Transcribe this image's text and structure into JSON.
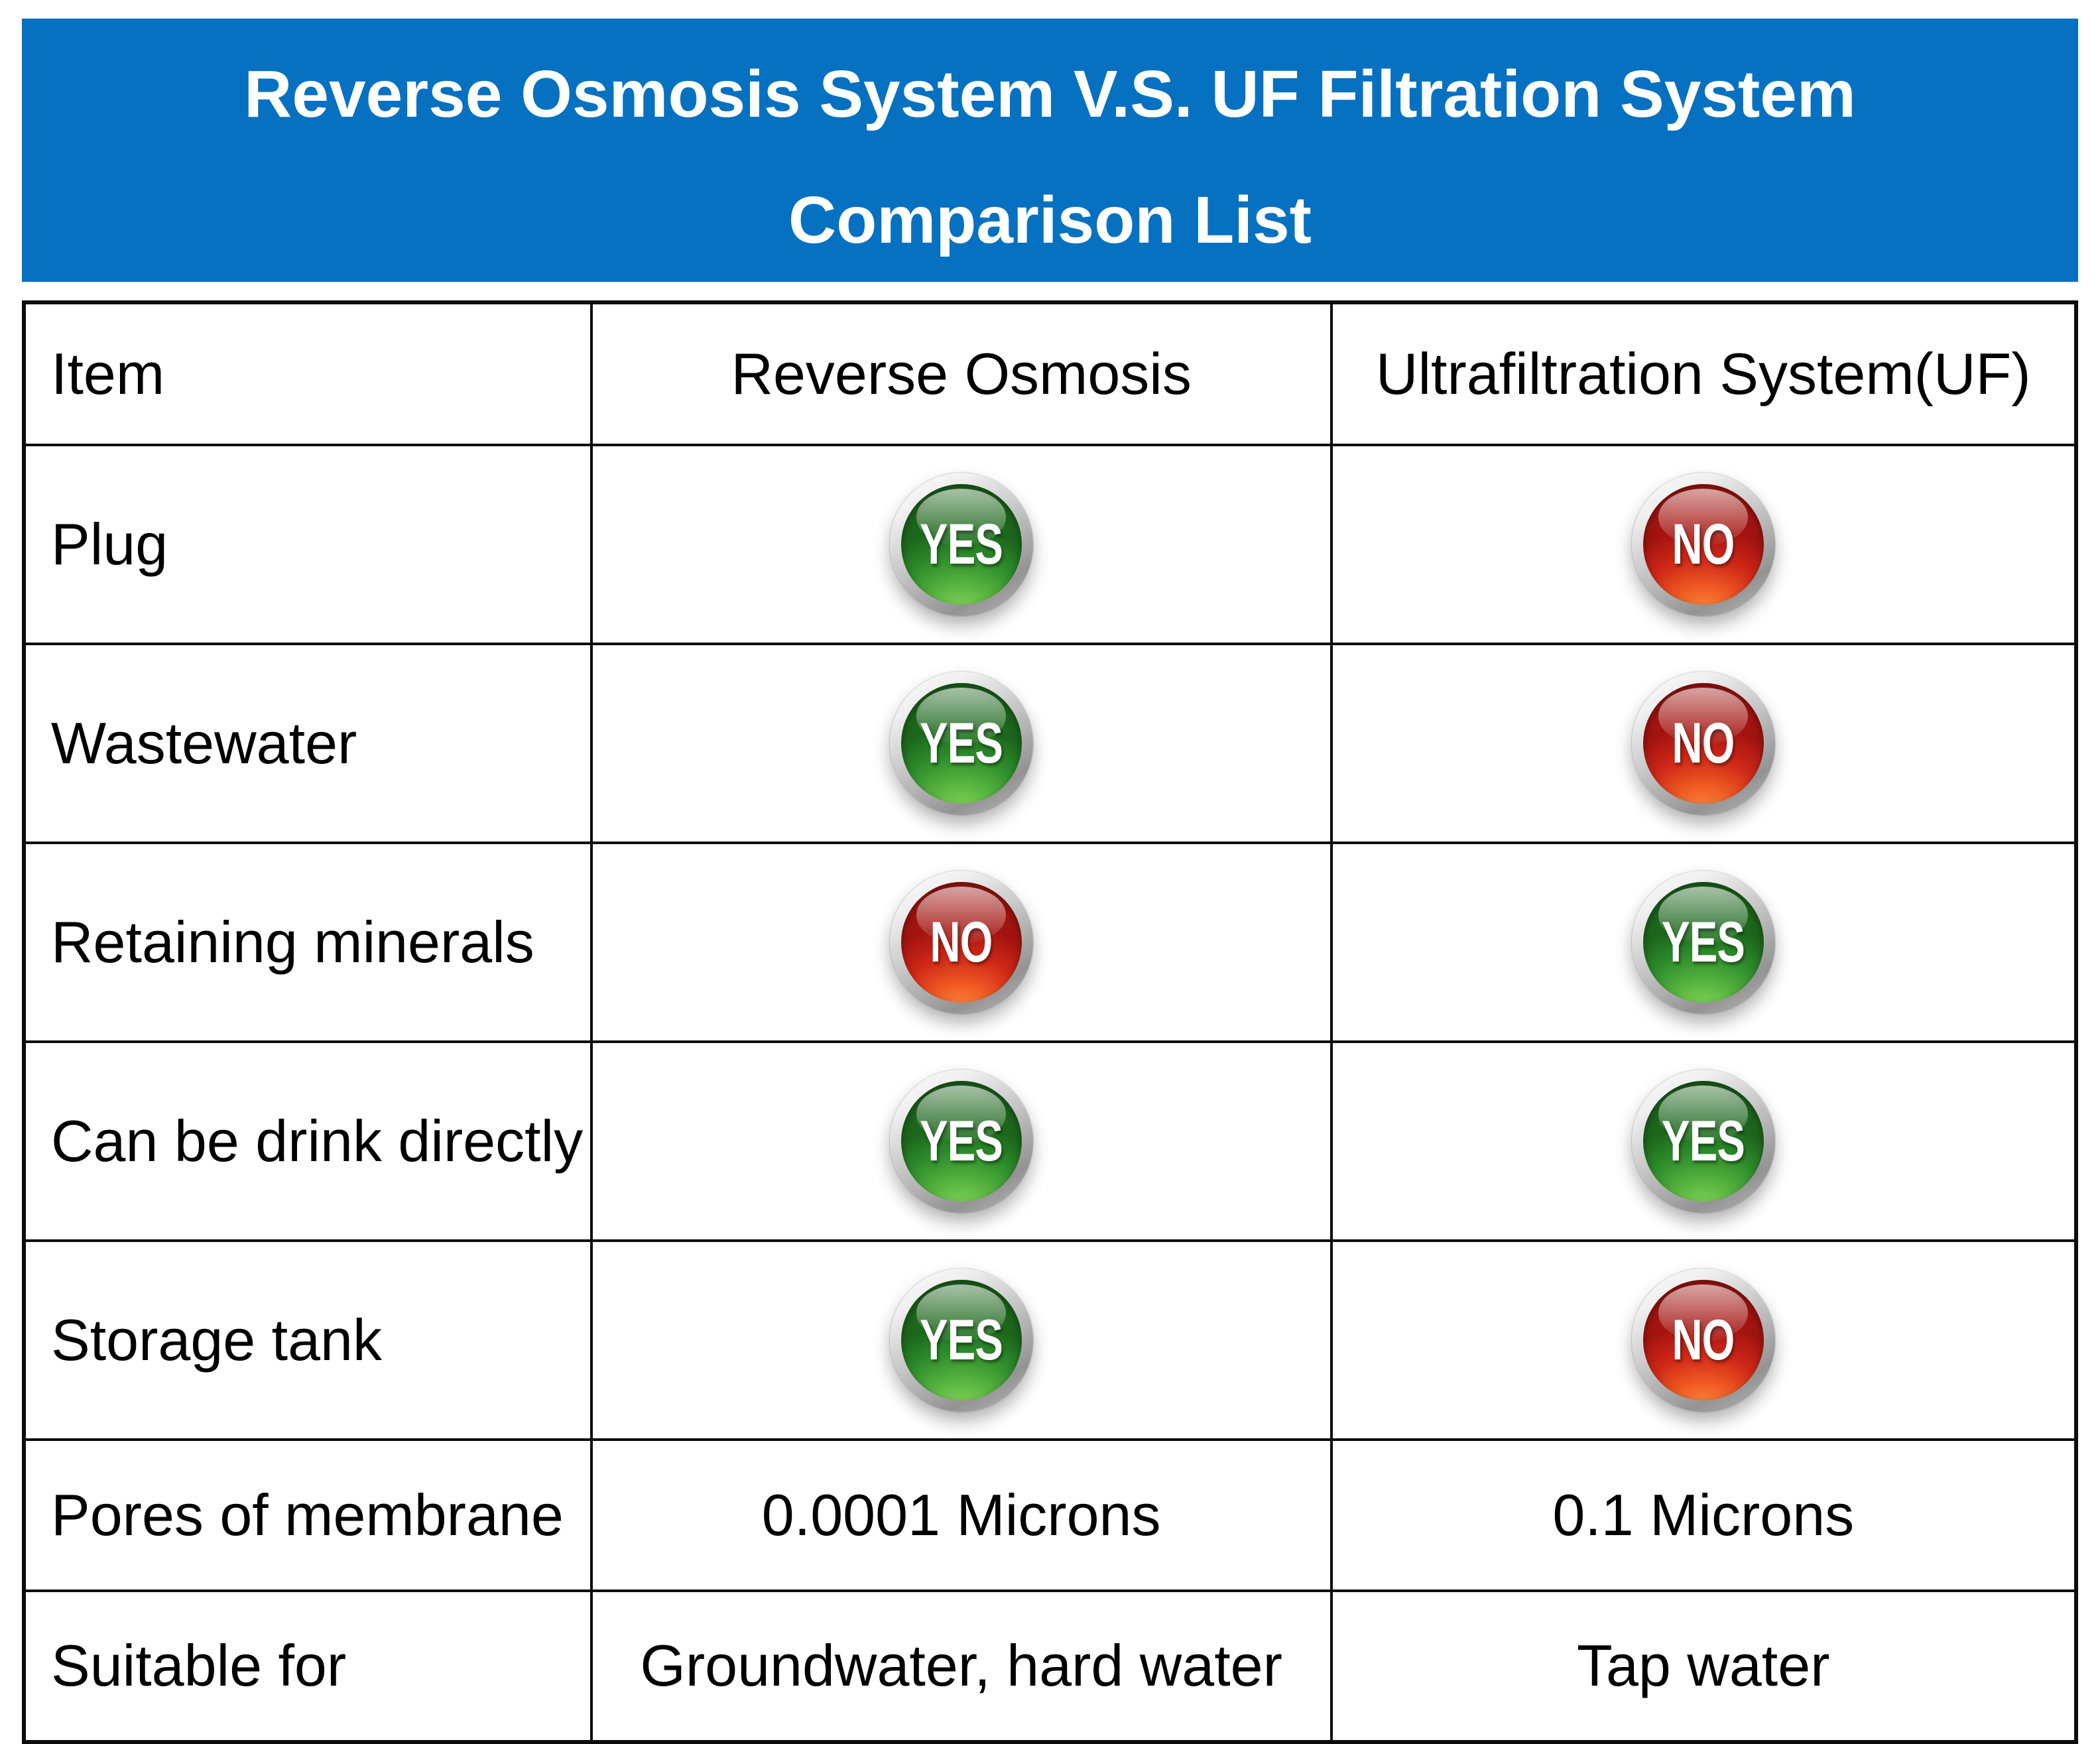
{
  "banner": {
    "title_line1": "Reverse Osmosis System V.S. UF Filtration System",
    "title_line2": "Comparison List",
    "background_color": "#0671c1",
    "text_color": "#ffffff"
  },
  "table": {
    "columns": [
      "Item",
      "Reverse Osmosis",
      "Ultrafiltration System(UF)"
    ],
    "rows": [
      {
        "label": "Plug",
        "reverse_osmosis": {
          "type": "badge",
          "value": "YES"
        },
        "ultrafiltration": {
          "type": "badge",
          "value": "NO"
        }
      },
      {
        "label": "Wastewater",
        "reverse_osmosis": {
          "type": "badge",
          "value": "YES"
        },
        "ultrafiltration": {
          "type": "badge",
          "value": "NO"
        }
      },
      {
        "label": "Retaining minerals",
        "reverse_osmosis": {
          "type": "badge",
          "value": "NO"
        },
        "ultrafiltration": {
          "type": "badge",
          "value": "YES"
        }
      },
      {
        "label": "Can be drink directly",
        "reverse_osmosis": {
          "type": "badge",
          "value": "YES"
        },
        "ultrafiltration": {
          "type": "badge",
          "value": "YES"
        }
      },
      {
        "label": "Storage tank",
        "reverse_osmosis": {
          "type": "badge",
          "value": "YES"
        },
        "ultrafiltration": {
          "type": "badge",
          "value": "NO"
        }
      },
      {
        "label": "Pores of membrane",
        "reverse_osmosis": {
          "type": "text",
          "value": "0.0001 Microns"
        },
        "ultrafiltration": {
          "type": "text",
          "value": "0.1 Microns"
        }
      },
      {
        "label": "Suitable for",
        "reverse_osmosis": {
          "type": "text",
          "value": "Groundwater, hard water"
        },
        "ultrafiltration": {
          "type": "text",
          "value": "Tap water"
        }
      }
    ]
  },
  "badges": {
    "yes_label": "YES",
    "no_label": "NO",
    "yes_color": "#2c8a2b",
    "no_color": "#cf2717",
    "ring_color": "#c6c6c6",
    "text_color": "#ffffff"
  },
  "chart_data": {
    "type": "table",
    "title": "Reverse Osmosis System V.S. UF Filtration System Comparison List",
    "columns": [
      "Item",
      "Reverse Osmosis",
      "Ultrafiltration System(UF)"
    ],
    "rows": [
      [
        "Plug",
        "YES",
        "NO"
      ],
      [
        "Wastewater",
        "YES",
        "NO"
      ],
      [
        "Retaining minerals",
        "NO",
        "YES"
      ],
      [
        "Can be drink directly",
        "YES",
        "YES"
      ],
      [
        "Storage tank",
        "YES",
        "NO"
      ],
      [
        "Pores of membrane",
        "0.0001 Microns",
        "0.1 Microns"
      ],
      [
        "Suitable for",
        "Groundwater, hard water",
        "Tap water"
      ]
    ]
  }
}
